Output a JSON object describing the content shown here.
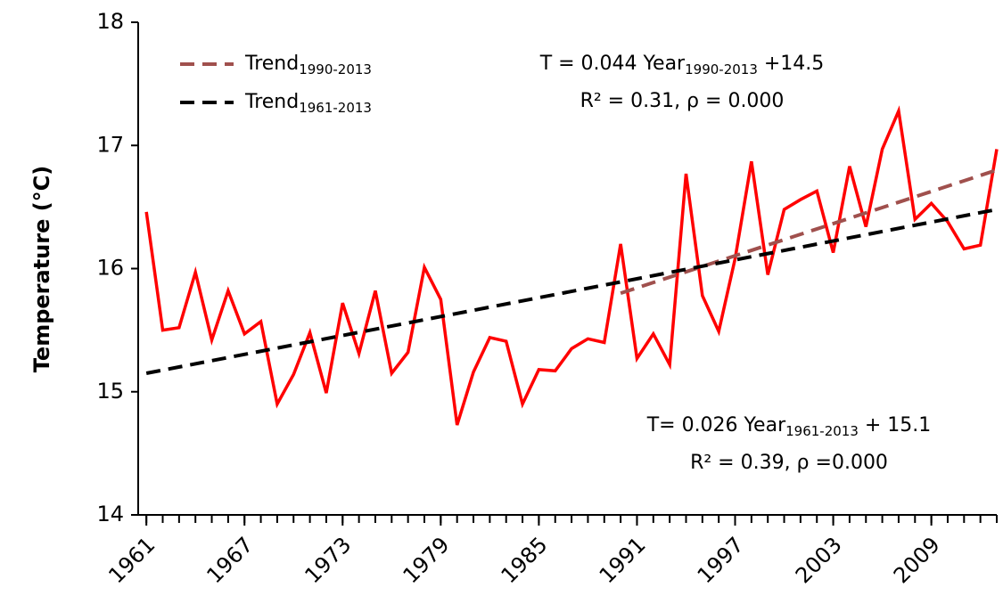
{
  "chart_data": {
    "type": "line",
    "y_label": "Temperature (°C)",
    "x": [
      1961,
      1962,
      1963,
      1964,
      1965,
      1966,
      1967,
      1968,
      1969,
      1970,
      1971,
      1972,
      1973,
      1974,
      1975,
      1976,
      1977,
      1978,
      1979,
      1980,
      1981,
      1982,
      1983,
      1984,
      1985,
      1986,
      1987,
      1988,
      1989,
      1990,
      1991,
      1992,
      1993,
      1994,
      1995,
      1996,
      1997,
      1998,
      1999,
      2000,
      2001,
      2002,
      2003,
      2004,
      2005,
      2006,
      2007,
      2008,
      2009,
      2010,
      2011,
      2012,
      2013
    ],
    "xlim": [
      1960.5,
      2013
    ],
    "xticks": [
      1961,
      1967,
      1973,
      1979,
      1985,
      1991,
      1997,
      2003,
      2009
    ],
    "ylim": [
      14,
      18
    ],
    "yticks": [
      14,
      15,
      16,
      17,
      18
    ],
    "grid": false,
    "legend": "upper left",
    "series": [
      {
        "color": "#ff0000",
        "style": "solid",
        "values": [
          16.46,
          15.5,
          15.52,
          15.97,
          15.42,
          15.82,
          15.47,
          15.57,
          14.9,
          15.14,
          15.48,
          14.99,
          15.72,
          15.31,
          15.82,
          15.15,
          15.32,
          16.01,
          15.75,
          14.73,
          15.16,
          15.44,
          15.41,
          14.9,
          15.18,
          15.17,
          15.35,
          15.43,
          15.4,
          16.2,
          15.27,
          15.47,
          15.22,
          16.77,
          15.78,
          15.49,
          16.08,
          16.87,
          15.95,
          16.48,
          16.56,
          16.63,
          16.13,
          16.83,
          16.34,
          16.97,
          17.28,
          16.4,
          16.53,
          16.38,
          16.16,
          16.19,
          16.97
        ]
      },
      {
        "name": "Trend",
        "name_sub": "1990-2013",
        "color": "#a0504d",
        "style": "dashed",
        "x": [
          1990,
          2013
        ],
        "values": [
          15.8,
          16.8
        ]
      },
      {
        "name": "Trend",
        "name_sub": "1961-2013",
        "color": "#000000",
        "style": "dashed",
        "x": [
          1961,
          2013
        ],
        "values": [
          15.15,
          16.48
        ]
      }
    ],
    "annotations": [
      {
        "main": "T = 0.044 Year",
        "sub": "1990-2013",
        "tail": " +14.5",
        "line2": "R² = 0.31, ρ = 0.000"
      },
      {
        "main": "T= 0.026 Year",
        "sub": "1961-2013",
        "tail": " + 15.1",
        "line2": "R² = 0.39, ρ =0.000"
      }
    ]
  }
}
